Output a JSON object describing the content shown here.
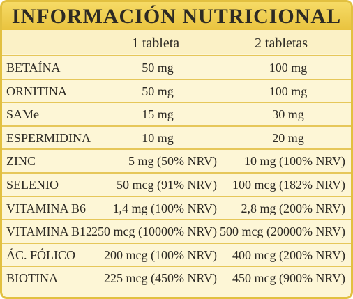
{
  "title": "INFORMACIÓN NUTRICIONAL",
  "columns": [
    "1 tableta",
    "2 tabletas"
  ],
  "rows": [
    {
      "name": "BETAÍNA",
      "a": "50 mg",
      "b": "100 mg",
      "centered": true
    },
    {
      "name": "ORNITINA",
      "a": "50 mg",
      "b": "100 mg",
      "centered": true
    },
    {
      "name": "SAMe",
      "a": "15 mg",
      "b": "30 mg",
      "centered": true
    },
    {
      "name": "ESPERMIDINA",
      "a": "10 mg",
      "b": "20 mg",
      "centered": true
    },
    {
      "name": "ZINC",
      "a": "5 mg (50% NRV)",
      "b": "10 mg (100% NRV)",
      "centered": false
    },
    {
      "name": "SELENIO",
      "a": "50 mcg (91% NRV)",
      "b": "100 mcg (182% NRV)",
      "centered": false
    },
    {
      "name": "VITAMINA B6",
      "a": "1,4 mg (100% NRV)",
      "b": "2,8 mg (200% NRV)",
      "centered": false
    },
    {
      "name": "VITAMINA B12",
      "a": "250 mcg (10000% NRV)",
      "b": "500 mcg (20000% NRV)",
      "centered": false
    },
    {
      "name": "ÁC. FÓLICO",
      "a": "200 mcg (100% NRV)",
      "b": "400 mcg (200% NRV)",
      "centered": false
    },
    {
      "name": "BIOTINA",
      "a": "225 mcg (450% NRV)",
      "b": "450 mcg (900% NRV)",
      "centered": false
    }
  ],
  "colors": {
    "accent": "#e9c33f",
    "background": "#fdf6d6",
    "text": "#2d2a24"
  }
}
